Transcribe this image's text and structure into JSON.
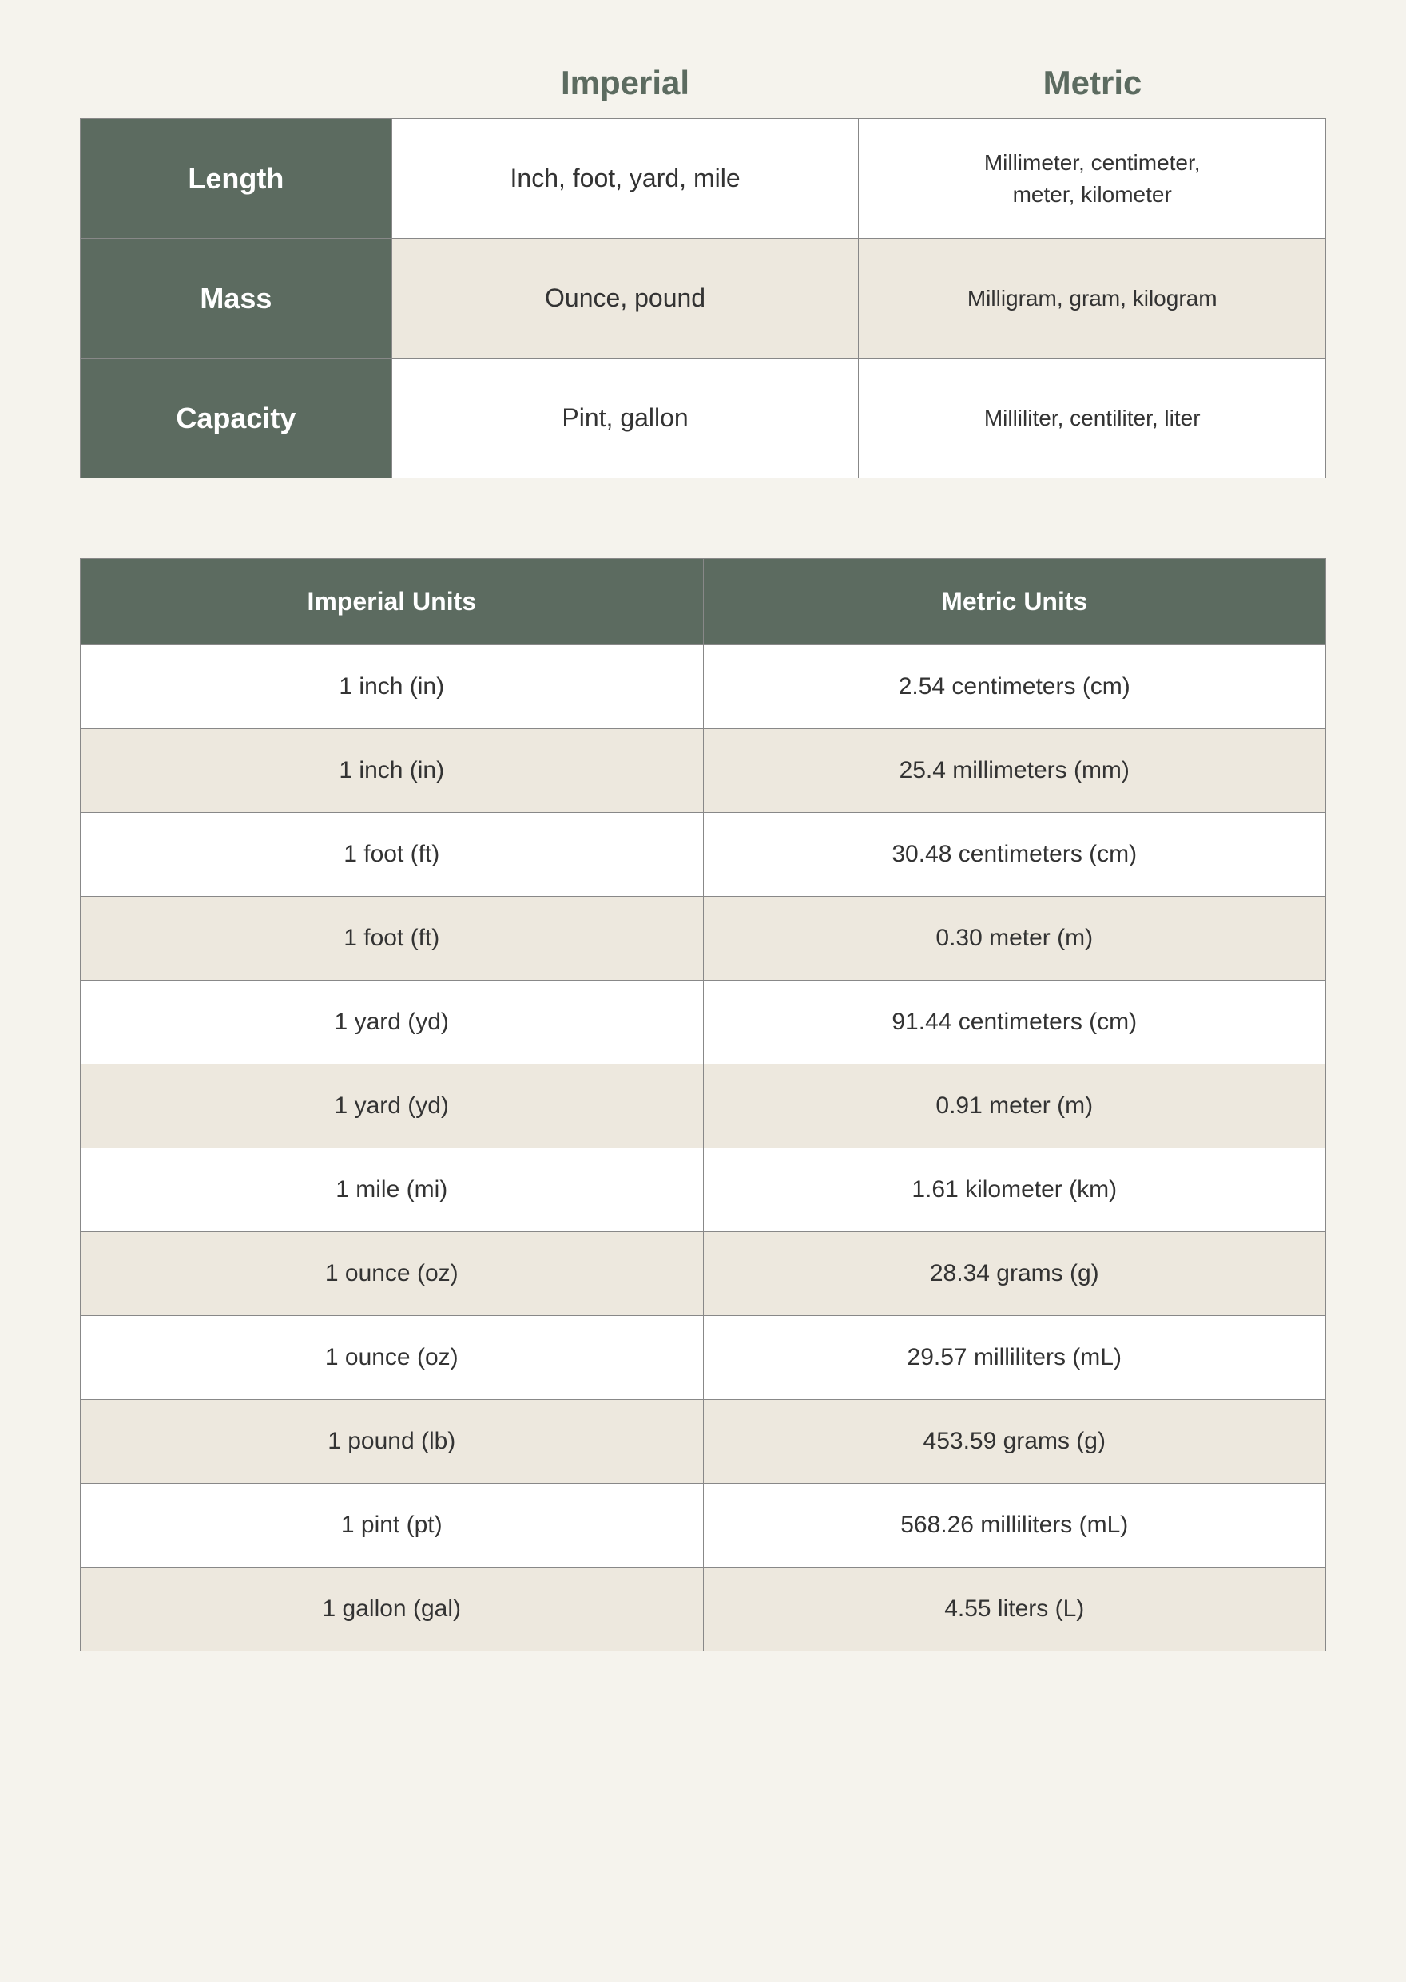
{
  "colors": {
    "background": "#f5f3ed",
    "header_dark": "#5c6b60",
    "header_text": "#ffffff",
    "alt_row": "#ede8de",
    "row_white": "#ffffff",
    "border": "#888888",
    "title_color": "#5c6b60",
    "cell_text": "#333333"
  },
  "typography": {
    "top_header_fontsize": 42,
    "top_header_weight": 700,
    "row_label_fontsize": 36,
    "data_cell_fontsize": 32,
    "metric_cell_fontsize": 28,
    "bottom_header_fontsize": 32,
    "bottom_cell_fontsize": 30
  },
  "top_table": {
    "headers": {
      "imperial": "Imperial",
      "metric": "Metric"
    },
    "rows": [
      {
        "label": "Length",
        "imperial": "Inch, foot, yard, mile",
        "metric_line1": "Millimeter, centimeter,",
        "metric_line2": "meter, kilometer"
      },
      {
        "label": "Mass",
        "imperial": "Ounce, pound",
        "metric_line1": "Milligram, gram, kilogram",
        "metric_line2": ""
      },
      {
        "label": "Capacity",
        "imperial": "Pint, gallon",
        "metric_line1": "Milliliter, centiliter, liter",
        "metric_line2": ""
      }
    ]
  },
  "bottom_table": {
    "headers": {
      "imperial": "Imperial Units",
      "metric": "Metric Units"
    },
    "rows": [
      {
        "imperial": "1 inch (in)",
        "metric": "2.54 centimeters (cm)"
      },
      {
        "imperial": "1 inch (in)",
        "metric": "25.4 millimeters (mm)"
      },
      {
        "imperial": "1 foot (ft)",
        "metric": "30.48 centimeters (cm)"
      },
      {
        "imperial": "1 foot (ft)",
        "metric": "0.30 meter (m)"
      },
      {
        "imperial": "1 yard (yd)",
        "metric": "91.44 centimeters (cm)"
      },
      {
        "imperial": "1 yard (yd)",
        "metric": "0.91 meter (m)"
      },
      {
        "imperial": "1 mile (mi)",
        "metric": "1.61 kilometer (km)"
      },
      {
        "imperial": "1 ounce (oz)",
        "metric": "28.34 grams (g)"
      },
      {
        "imperial": "1 ounce (oz)",
        "metric": "29.57 milliliters (mL)"
      },
      {
        "imperial": "1 pound (lb)",
        "metric": "453.59 grams (g)"
      },
      {
        "imperial": "1 pint (pt)",
        "metric": "568.26 milliliters (mL)"
      },
      {
        "imperial": "1 gallon (gal)",
        "metric": "4.55 liters (L)"
      }
    ]
  }
}
